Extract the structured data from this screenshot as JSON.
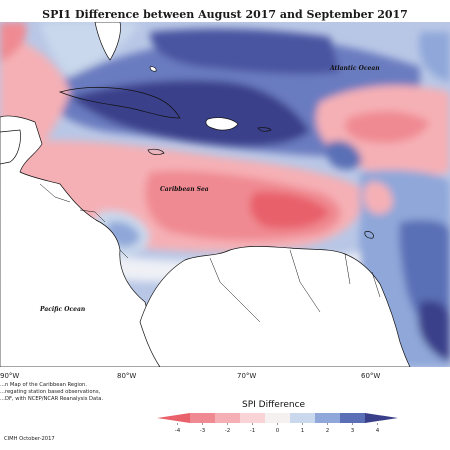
{
  "title": "SPI1 Difference between August 2017 and September 2017",
  "map": {
    "labels": {
      "atlantic": "Atlantic Ocean",
      "caribbean": "Caribbean Sea",
      "pacific": "Pacific Ocean"
    },
    "longitude_ticks": [
      "90°W",
      "80°W",
      "70°W",
      "60°W"
    ]
  },
  "legend": {
    "title": "SPI Difference",
    "ticks": [
      "-4",
      "-3",
      "-2",
      "-1",
      "0",
      "1",
      "2",
      "3",
      "4"
    ],
    "colors": [
      "#e8616b",
      "#f08a92",
      "#f5b0b5",
      "#fad3d6",
      "#f4f1f0",
      "#c9d8ec",
      "#8fa7d9",
      "#5a6fb6",
      "#3a3f8a"
    ]
  },
  "footnote": {
    "lines": [
      "...n Map of the Caribbean Region.",
      "...regating station based observations,",
      "...DF, with NCEP/NCAR Reanalysis Data."
    ],
    "credit": "CIMH October-2017"
  }
}
